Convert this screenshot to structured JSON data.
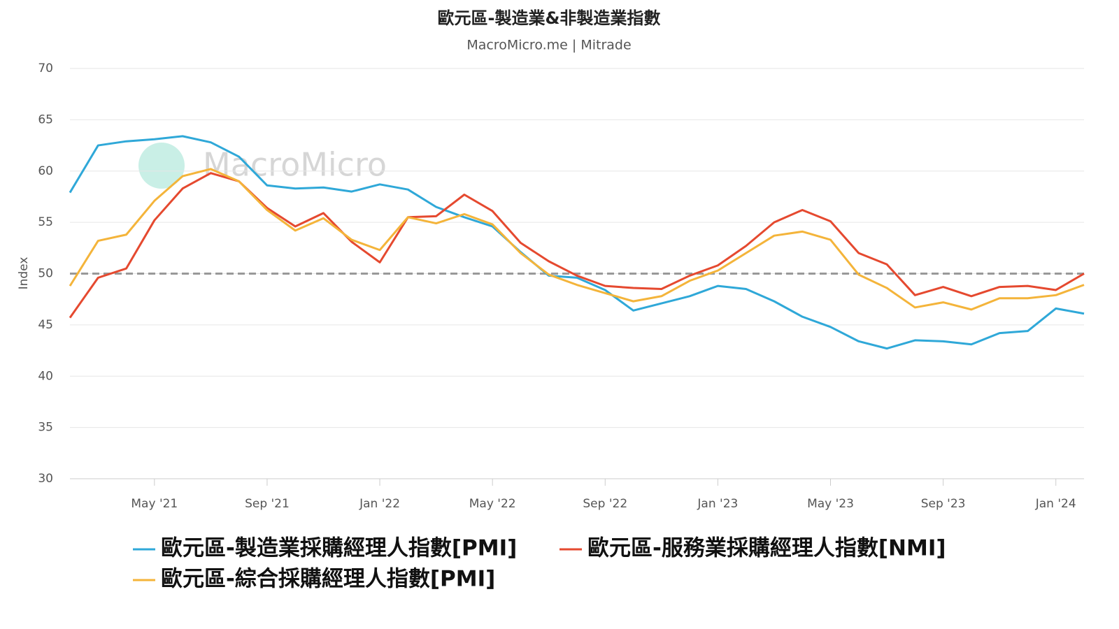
{
  "chart_data": {
    "type": "line",
    "title": "歐元區-製造業&非製造業指數",
    "subtitle": "MacroMicro.me | Mitrade",
    "watermark": "MacroMicro",
    "y_label": "Index",
    "x": [
      "2021-02",
      "2021-03",
      "2021-04",
      "2021-05",
      "2021-06",
      "2021-07",
      "2021-08",
      "2021-09",
      "2021-10",
      "2021-11",
      "2021-12",
      "2022-01",
      "2022-02",
      "2022-03",
      "2022-04",
      "2022-05",
      "2022-06",
      "2022-07",
      "2022-08",
      "2022-09",
      "2022-10",
      "2022-11",
      "2022-12",
      "2023-01",
      "2023-02",
      "2023-03",
      "2023-04",
      "2023-05",
      "2023-06",
      "2023-07",
      "2023-08",
      "2023-09",
      "2023-10",
      "2023-11",
      "2023-12",
      "2024-01",
      "2024-02"
    ],
    "series": [
      {
        "name": "歐元區-製造業採購經理人指數[PMI]",
        "color": "#2fa8d8",
        "values": [
          57.9,
          62.5,
          62.9,
          63.1,
          63.4,
          62.8,
          61.4,
          58.6,
          58.3,
          58.4,
          58.0,
          58.7,
          58.2,
          56.5,
          55.5,
          54.6,
          52.1,
          49.8,
          49.6,
          48.4,
          46.4,
          47.1,
          47.8,
          48.8,
          48.5,
          47.3,
          45.8,
          44.8,
          43.4,
          42.7,
          43.5,
          43.4,
          43.1,
          44.2,
          44.4,
          46.6,
          46.1
        ]
      },
      {
        "name": "歐元區-服務業採購經理人指數[NMI]",
        "color": "#e5492f",
        "values": [
          45.7,
          49.6,
          50.5,
          55.2,
          58.3,
          59.8,
          59.0,
          56.4,
          54.6,
          55.9,
          53.1,
          51.1,
          55.5,
          55.6,
          57.7,
          56.1,
          53.0,
          51.2,
          49.8,
          48.8,
          48.6,
          48.5,
          49.8,
          50.8,
          52.7,
          55.0,
          56.2,
          55.1,
          52.0,
          50.9,
          47.9,
          48.7,
          47.8,
          48.7,
          48.8,
          48.4,
          50.0
        ]
      },
      {
        "name": "歐元區-綜合採購經理人指數[PMI]",
        "color": "#f4b43a",
        "values": [
          48.8,
          53.2,
          53.8,
          57.1,
          59.5,
          60.2,
          59.0,
          56.2,
          54.2,
          55.4,
          53.3,
          52.3,
          55.5,
          54.9,
          55.8,
          54.8,
          52.0,
          49.9,
          48.9,
          48.1,
          47.3,
          47.8,
          49.3,
          50.3,
          52.0,
          53.7,
          54.1,
          53.3,
          49.9,
          48.6,
          46.7,
          47.2,
          46.5,
          47.6,
          47.6,
          47.9,
          48.9
        ]
      }
    ],
    "reference_line": 50,
    "xticks": [
      {
        "value": "2021-05",
        "label": "May '21"
      },
      {
        "value": "2021-09",
        "label": "Sep '21"
      },
      {
        "value": "2022-01",
        "label": "Jan '22"
      },
      {
        "value": "2022-05",
        "label": "May '22"
      },
      {
        "value": "2022-09",
        "label": "Sep '22"
      },
      {
        "value": "2023-01",
        "label": "Jan '23"
      },
      {
        "value": "2023-05",
        "label": "May '23"
      },
      {
        "value": "2023-09",
        "label": "Sep '23"
      },
      {
        "value": "2024-01",
        "label": "Jan '24"
      }
    ],
    "ylim": [
      30,
      70
    ],
    "yticks": [
      30,
      35,
      40,
      45,
      50,
      55,
      60,
      65,
      70
    ],
    "grid": true,
    "legend": "bottom"
  }
}
